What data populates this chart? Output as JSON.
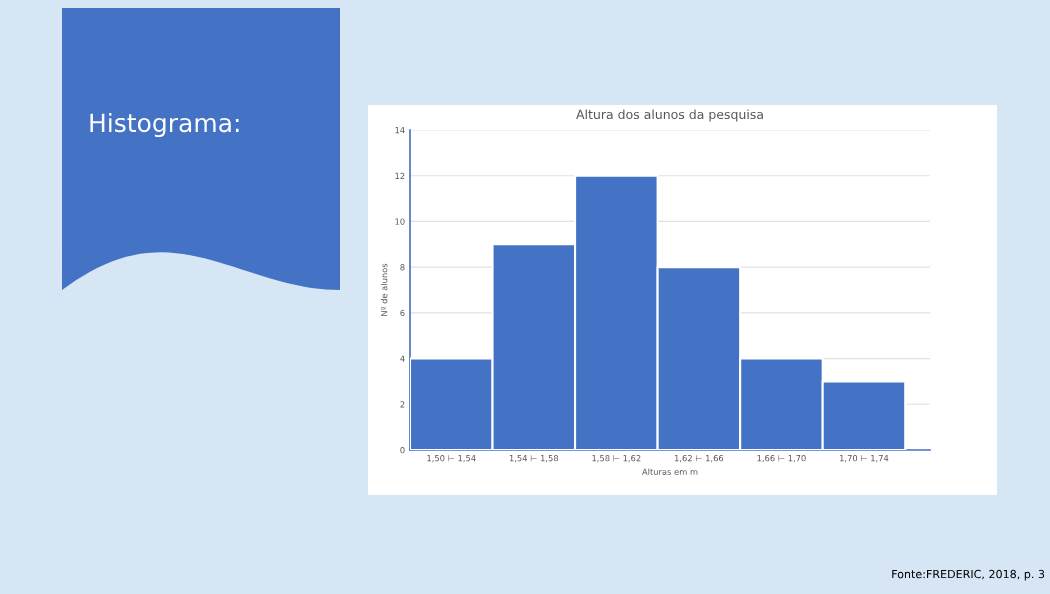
{
  "chart_data": {
    "type": "bar",
    "title": "Altura dos alunos da pesquisa",
    "xlabel": "Alturas em m",
    "ylabel": "Nº de alunos",
    "categories": [
      "1,50 ⊢ 1,54",
      "1,54 ⊢ 1,58",
      "1,58 ⊢ 1,62",
      "1,62 ⊢ 1,66",
      "1,66 ⊢ 1,70",
      "1,70 ⊢ 1,74"
    ],
    "values": [
      4,
      9,
      12,
      8,
      4,
      3
    ],
    "color": "#4472c4",
    "ylim": [
      0,
      14
    ],
    "yticks": [
      0,
      2,
      4,
      6,
      8,
      10,
      12,
      14
    ],
    "grid": "y",
    "annotations": [
      "Histograma:",
      "Fonte:FREDERIC, 2018, p. 3"
    ]
  }
}
